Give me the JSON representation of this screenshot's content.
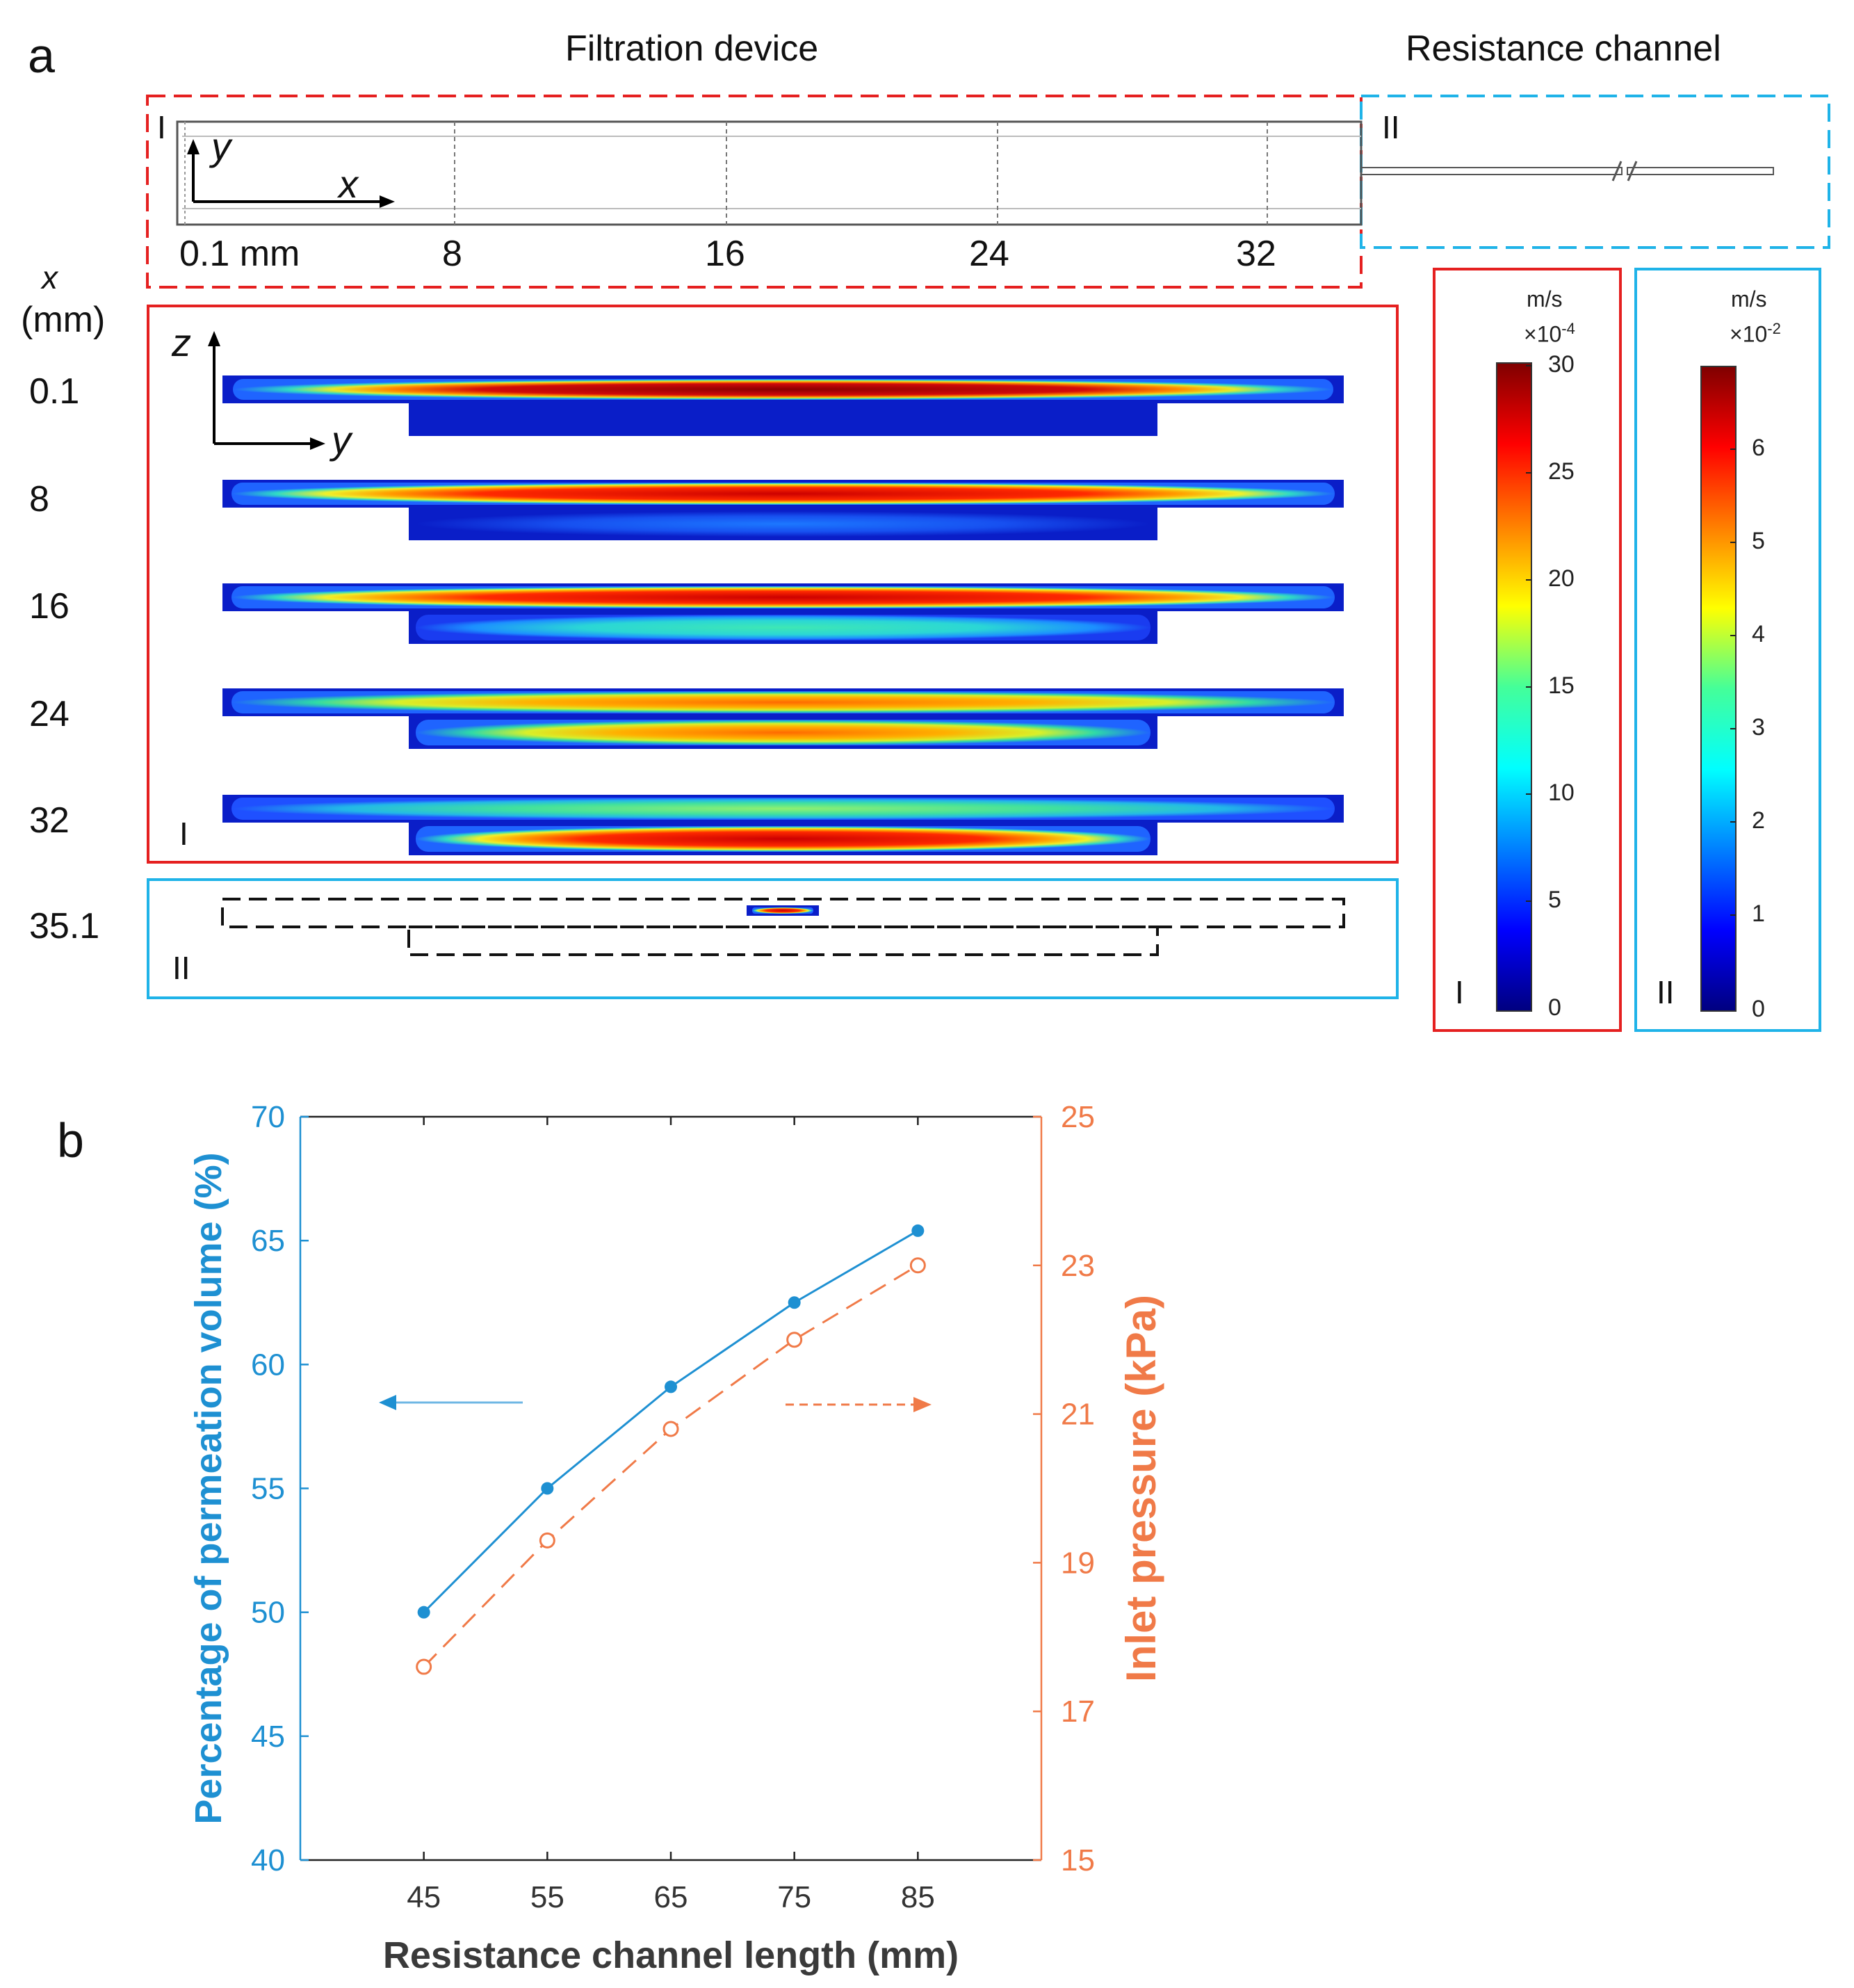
{
  "panel_a": {
    "letter": "a",
    "header_filtration": "Filtration device",
    "header_resistance": "Resistance channel",
    "topview": {
      "roman_I": "I",
      "roman_II": "II",
      "axis_y": "y",
      "axis_x": "x",
      "x_ticks": [
        "0.1 mm",
        "8",
        "16",
        "24",
        "32"
      ]
    },
    "x_label_top": "x",
    "x_label_unit": "(mm)",
    "rows": [
      "0.1",
      "8",
      "16",
      "24",
      "32",
      "35.1"
    ],
    "cross_section": {
      "axis_z": "z",
      "axis_y": "y",
      "roman_I": "I",
      "roman_II": "II"
    },
    "colorbar_I": {
      "unit": "m/s",
      "scale_base": "×10",
      "scale_exp": "-4",
      "ticks": [
        "30",
        "25",
        "20",
        "15",
        "10",
        "5",
        "0"
      ],
      "roman": "I"
    },
    "colorbar_II": {
      "unit": "m/s",
      "scale_base": "×10",
      "scale_exp": "-2",
      "ticks": [
        "6",
        "5",
        "4",
        "3",
        "2",
        "1",
        "0"
      ],
      "roman": "II"
    }
  },
  "panel_b": {
    "letter": "b"
  },
  "chart_data": {
    "type": "line",
    "title": "",
    "xlabel": "Resistance channel length (mm)",
    "ylabel": "Percentage of permeation volume (%)",
    "ylabel_right": "Inlet pressure (kPa)",
    "x": [
      45,
      55,
      65,
      75,
      85
    ],
    "xlim": [
      35,
      95
    ],
    "ylim": [
      40,
      70
    ],
    "ylim_right": [
      15,
      25
    ],
    "x_ticks": [
      "45",
      "55",
      "65",
      "75",
      "85"
    ],
    "y_ticks": [
      "40",
      "45",
      "50",
      "55",
      "60",
      "65",
      "70"
    ],
    "y_right_ticks": [
      "15",
      "17",
      "19",
      "21",
      "23",
      "25"
    ],
    "series": [
      {
        "name": "Percentage of permeation volume",
        "axis": "left",
        "values": [
          50.0,
          55.0,
          59.1,
          62.5,
          65.4
        ],
        "color": "#1e90d2",
        "style": "solid",
        "marker": "filled-circle"
      },
      {
        "name": "Inlet pressure",
        "axis": "right",
        "values": [
          17.6,
          19.3,
          20.8,
          22.0,
          23.0
        ],
        "color": "#f07a48",
        "style": "dashed",
        "marker": "open-circle"
      }
    ]
  }
}
